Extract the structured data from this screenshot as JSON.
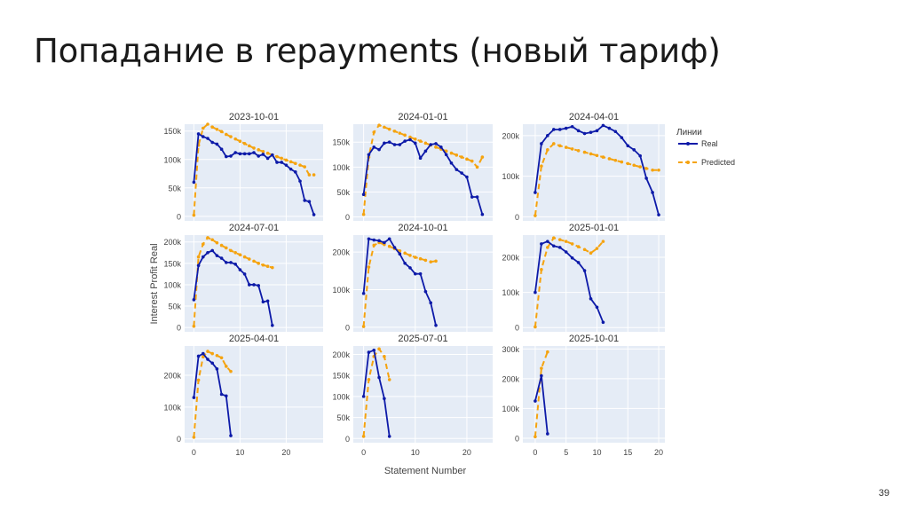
{
  "slide": {
    "title": "Попадание в repayments (новый тариф)",
    "page_number": "39"
  },
  "chart_data": {
    "type": "line",
    "ylabel": "Interest Profit Real",
    "xlabel": "Statement Number",
    "legend": {
      "title": "Линии",
      "position": "right",
      "entries": [
        {
          "name": "Real",
          "color": "#0d1aa8",
          "style": "solid"
        },
        {
          "name": "Predicted",
          "color": "#f5a30f",
          "style": "dash"
        }
      ]
    },
    "grid": true,
    "column_xlim": [
      [
        -2,
        28
      ],
      [
        -2,
        25
      ],
      [
        -2,
        21
      ]
    ],
    "column_xticks": [
      [
        0,
        10,
        20
      ],
      [
        0,
        10,
        20
      ],
      [
        0,
        5,
        10,
        15,
        20
      ]
    ],
    "panels": [
      {
        "title": "2023-10-01",
        "ylim": [
          -8000,
          162000
        ],
        "yticks": [
          0,
          50000,
          100000,
          150000
        ],
        "ytick_labels": [
          "0",
          "50k",
          "100k",
          "150k"
        ],
        "real_x": [
          0,
          1,
          2,
          3,
          4,
          5,
          6,
          7,
          8,
          9,
          10,
          11,
          12,
          13,
          14,
          15,
          16,
          17,
          18,
          19,
          20,
          21,
          22,
          23,
          24,
          25,
          26
        ],
        "real_y": [
          60000,
          145000,
          140000,
          137000,
          130000,
          127000,
          118000,
          105000,
          106000,
          112000,
          110000,
          110000,
          110000,
          112000,
          106000,
          109000,
          102000,
          108000,
          95000,
          95000,
          90000,
          83000,
          78000,
          62000,
          28000,
          26000,
          3000
        ],
        "pred_x": [
          0,
          1,
          2,
          3,
          4,
          5,
          6,
          7,
          8,
          9,
          10,
          11,
          12,
          13,
          14,
          15,
          16,
          17,
          18,
          19,
          20,
          21,
          22,
          23,
          24,
          25,
          26
        ],
        "pred_y": [
          2000,
          125000,
          155000,
          162000,
          157000,
          153000,
          149000,
          144000,
          140000,
          136000,
          132000,
          128000,
          124000,
          120000,
          117000,
          114000,
          111000,
          108000,
          105000,
          102000,
          99000,
          96000,
          93000,
          90000,
          87000,
          73000,
          73000
        ]
      },
      {
        "title": "2024-01-01",
        "ylim": [
          -8000,
          186000
        ],
        "yticks": [
          0,
          50000,
          100000,
          150000
        ],
        "ytick_labels": [
          "0",
          "50k",
          "100k",
          "150k"
        ],
        "real_x": [
          0,
          1,
          2,
          3,
          4,
          5,
          6,
          7,
          8,
          9,
          10,
          11,
          12,
          13,
          14,
          15,
          16,
          17,
          18,
          19,
          20,
          21,
          22,
          23
        ],
        "real_y": [
          45000,
          125000,
          140000,
          135000,
          148000,
          150000,
          145000,
          145000,
          152000,
          155000,
          148000,
          118000,
          132000,
          145000,
          147000,
          140000,
          125000,
          108000,
          95000,
          88000,
          80000,
          40000,
          40000,
          5000
        ],
        "pred_x": [
          0,
          1,
          2,
          3,
          4,
          5,
          6,
          7,
          8,
          9,
          10,
          11,
          12,
          13,
          14,
          15,
          16,
          17,
          18,
          19,
          20,
          21,
          22,
          23
        ],
        "pred_y": [
          5000,
          120000,
          170000,
          184000,
          180000,
          176000,
          172000,
          168000,
          164000,
          160000,
          156000,
          152000,
          148000,
          144000,
          140000,
          136000,
          132000,
          128000,
          124000,
          120000,
          116000,
          112000,
          100000,
          120000
        ]
      },
      {
        "title": "2024-04-01",
        "ylim": [
          -10000,
          228000
        ],
        "yticks": [
          0,
          100000,
          200000
        ],
        "ytick_labels": [
          "0",
          "100k",
          "200k"
        ],
        "real_x": [
          0,
          1,
          2,
          3,
          4,
          5,
          6,
          7,
          8,
          9,
          10,
          11,
          12,
          13,
          14,
          15,
          16,
          17,
          18,
          19,
          20
        ],
        "real_y": [
          60000,
          180000,
          200000,
          215000,
          215000,
          218000,
          222000,
          212000,
          205000,
          208000,
          212000,
          225000,
          218000,
          210000,
          195000,
          175000,
          165000,
          150000,
          95000,
          60000,
          5000
        ],
        "pred_x": [
          0,
          1,
          2,
          3,
          4,
          5,
          6,
          7,
          8,
          9,
          10,
          11,
          12,
          13,
          14,
          15,
          16,
          17,
          18,
          19,
          20
        ],
        "pred_y": [
          3000,
          125000,
          165000,
          180000,
          175000,
          171000,
          167000,
          163000,
          159000,
          155000,
          151000,
          147000,
          143000,
          139000,
          135000,
          131000,
          127000,
          123000,
          119000,
          115000,
          115000
        ]
      },
      {
        "title": "2024-07-01",
        "ylim": [
          -10000,
          216000
        ],
        "yticks": [
          0,
          50000,
          100000,
          150000,
          200000
        ],
        "ytick_labels": [
          "0",
          "50k",
          "100k",
          "150k",
          "200k"
        ],
        "real_x": [
          0,
          1,
          2,
          3,
          4,
          5,
          6,
          7,
          8,
          9,
          10,
          11,
          12,
          13,
          14,
          15,
          16,
          17
        ],
        "real_y": [
          65000,
          145000,
          165000,
          175000,
          180000,
          168000,
          162000,
          152000,
          152000,
          148000,
          135000,
          125000,
          100000,
          100000,
          98000,
          60000,
          62000,
          5000
        ],
        "pred_x": [
          0,
          1,
          2,
          3,
          4,
          5,
          6,
          7,
          8,
          9,
          10,
          11,
          12,
          13,
          14,
          15,
          16,
          17
        ],
        "pred_y": [
          3000,
          165000,
          195000,
          210000,
          205000,
          198000,
          192000,
          186000,
          180000,
          175000,
          170000,
          165000,
          160000,
          155000,
          150000,
          146000,
          143000,
          140000
        ]
      },
      {
        "title": "2024-10-01",
        "ylim": [
          -12000,
          245000
        ],
        "yticks": [
          0,
          100000,
          200000
        ],
        "ytick_labels": [
          "0",
          "100k",
          "200k"
        ],
        "real_x": [
          0,
          1,
          2,
          3,
          4,
          5,
          6,
          7,
          8,
          9,
          10,
          11,
          12,
          13,
          14
        ],
        "real_y": [
          90000,
          235000,
          232000,
          230000,
          225000,
          235000,
          212000,
          195000,
          170000,
          158000,
          142000,
          142000,
          95000,
          65000,
          5000
        ],
        "pred_x": [
          0,
          1,
          2,
          3,
          4,
          5,
          6,
          7,
          8,
          9,
          10,
          11,
          12,
          13,
          14
        ],
        "pred_y": [
          2000,
          160000,
          218000,
          225000,
          220000,
          215000,
          209000,
          203000,
          197000,
          191000,
          186000,
          182000,
          178000,
          174000,
          176000
        ]
      },
      {
        "title": "2025-01-01",
        "ylim": [
          -12000,
          263000
        ],
        "yticks": [
          0,
          100000,
          200000
        ],
        "ytick_labels": [
          "0",
          "100k",
          "200k"
        ],
        "real_x": [
          0,
          1,
          2,
          3,
          4,
          5,
          6,
          7,
          8,
          9,
          10,
          11
        ],
        "real_y": [
          100000,
          238000,
          245000,
          232000,
          228000,
          215000,
          198000,
          185000,
          162000,
          82000,
          58000,
          15000
        ],
        "pred_x": [
          0,
          1,
          2,
          3,
          4,
          5,
          6,
          7,
          8,
          9,
          10,
          11
        ],
        "pred_y": [
          2000,
          165000,
          228000,
          255000,
          250000,
          245000,
          238000,
          230000,
          222000,
          212000,
          225000,
          245000
        ]
      },
      {
        "title": "2025-04-01",
        "ylim": [
          -12000,
          292000
        ],
        "yticks": [
          0,
          100000,
          200000
        ],
        "ytick_labels": [
          "0",
          "100k",
          "200k"
        ],
        "real_x": [
          0,
          1,
          2,
          3,
          4,
          5,
          6,
          7,
          8
        ],
        "real_y": [
          130000,
          260000,
          268000,
          250000,
          238000,
          220000,
          140000,
          135000,
          10000
        ],
        "pred_x": [
          0,
          1,
          2,
          3,
          4,
          5,
          6,
          7,
          8
        ],
        "pred_y": [
          5000,
          185000,
          258000,
          275000,
          268000,
          262000,
          255000,
          228000,
          212000
        ]
      },
      {
        "title": "2025-07-01",
        "ylim": [
          -10000,
          220000
        ],
        "yticks": [
          0,
          50000,
          100000,
          150000,
          200000
        ],
        "ytick_labels": [
          "0",
          "50k",
          "100k",
          "150k",
          "200k"
        ],
        "real_x": [
          0,
          1,
          2,
          3,
          4,
          5
        ],
        "real_y": [
          100000,
          205000,
          210000,
          145000,
          95000,
          5000
        ],
        "pred_x": [
          0,
          1,
          2,
          3,
          4,
          5
        ],
        "pred_y": [
          5000,
          140000,
          195000,
          213000,
          195000,
          140000
        ]
      },
      {
        "title": "2025-10-01",
        "ylim": [
          -15000,
          310000
        ],
        "yticks": [
          0,
          100000,
          200000,
          300000
        ],
        "ytick_labels": [
          "0",
          "100k",
          "200k",
          "300k"
        ],
        "real_x": [
          0,
          1,
          2
        ],
        "real_y": [
          125000,
          210000,
          15000
        ],
        "pred_x": [
          0,
          1,
          2
        ],
        "pred_y": [
          5000,
          235000,
          290000
        ]
      }
    ]
  }
}
